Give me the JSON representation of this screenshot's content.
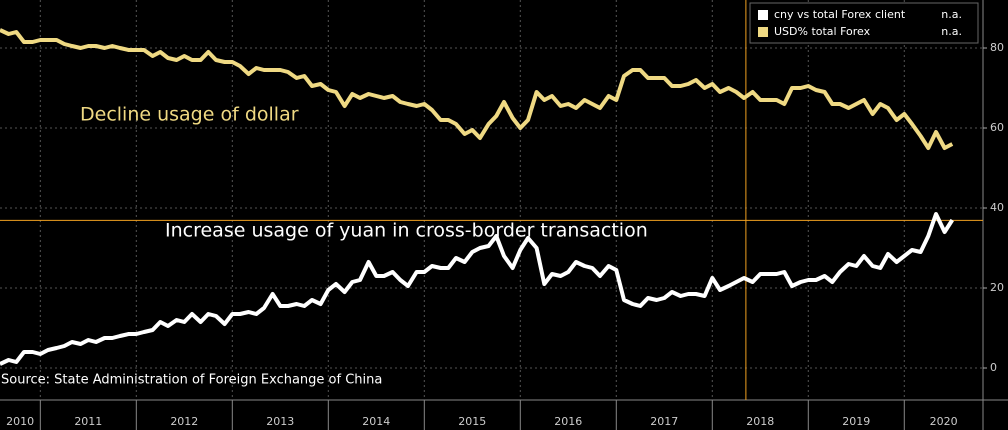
{
  "chart_data": {
    "type": "line",
    "annotations": [
      "Decline usage of dollar",
      "Increase usage of yuan in cross-border transaction"
    ],
    "source": "Source: State Administration of Foreign Exchange of China",
    "x": [
      2010.58,
      2010.67,
      2010.75,
      2010.83,
      2010.92,
      2011,
      2011.08,
      2011.17,
      2011.25,
      2011.33,
      2011.42,
      2011.5,
      2011.58,
      2011.67,
      2011.75,
      2011.83,
      2011.92,
      2012,
      2012.08,
      2012.17,
      2012.25,
      2012.33,
      2012.42,
      2012.5,
      2012.58,
      2012.67,
      2012.75,
      2012.83,
      2012.92,
      2013,
      2013.08,
      2013.17,
      2013.25,
      2013.33,
      2013.42,
      2013.5,
      2013.58,
      2013.67,
      2013.75,
      2013.83,
      2013.92,
      2014,
      2014.08,
      2014.17,
      2014.25,
      2014.33,
      2014.42,
      2014.5,
      2014.58,
      2014.67,
      2014.75,
      2014.83,
      2014.92,
      2015,
      2015.08,
      2015.17,
      2015.25,
      2015.33,
      2015.42,
      2015.5,
      2015.58,
      2015.67,
      2015.75,
      2015.83,
      2015.92,
      2016,
      2016.08,
      2016.17,
      2016.25,
      2016.33,
      2016.42,
      2016.5,
      2016.58,
      2016.67,
      2016.75,
      2016.83,
      2016.92,
      2017,
      2017.08,
      2017.17,
      2017.25,
      2017.33,
      2017.42,
      2017.5,
      2017.58,
      2017.67,
      2017.75,
      2017.83,
      2017.92,
      2018,
      2018.08,
      2018.17,
      2018.25,
      2018.33,
      2018.42,
      2018.5,
      2018.58,
      2018.67,
      2018.75,
      2018.83,
      2018.92,
      2019,
      2019.08,
      2019.17,
      2019.25,
      2019.33,
      2019.42,
      2019.5,
      2019.58,
      2019.67,
      2019.75,
      2019.83,
      2019.92,
      2020,
      2020.08,
      2020.17,
      2020.25,
      2020.33,
      2020.42,
      2020.5
    ],
    "series": [
      {
        "name": "cny vs total Forex client",
        "legend_value": "n.a.",
        "color": "#ffffff",
        "values": [
          1,
          2,
          1.5,
          4,
          4,
          3.5,
          4.5,
          5,
          5.5,
          6.5,
          6,
          7,
          6.5,
          7.5,
          7.5,
          8,
          8.5,
          8.5,
          9,
          9.5,
          11.5,
          10.5,
          12,
          11.5,
          13.5,
          11.5,
          13.5,
          13,
          11,
          13.5,
          13.5,
          14,
          13.5,
          15,
          18.5,
          15.5,
          15.5,
          16,
          15.5,
          17,
          16,
          19.5,
          21,
          19,
          21.5,
          22,
          26.5,
          23,
          23,
          24,
          22,
          20.5,
          24,
          24,
          25.5,
          25,
          25,
          27.5,
          26.5,
          29,
          30,
          30.5,
          33,
          28,
          25,
          29.5,
          32.5,
          30,
          21,
          23.5,
          23,
          24,
          26.5,
          25.5,
          25,
          23,
          25.5,
          24.5,
          17,
          16,
          15.5,
          17.5,
          17,
          17.5,
          19,
          18,
          18.5,
          18.5,
          18,
          22.5,
          19.5,
          20.5,
          21.5,
          22.5,
          21.5,
          23.5,
          23.5,
          23.5,
          24,
          20.5,
          21.5,
          22,
          22,
          23,
          21.5,
          24,
          26,
          25.5,
          28,
          25.5,
          25,
          28.5,
          26.5,
          28,
          29.5,
          29,
          33,
          38.5,
          34,
          37
        ]
      },
      {
        "name": "USD% total Forex",
        "legend_value": "n.a.",
        "color": "#efd983",
        "values": [
          84.5,
          83.5,
          84,
          81.5,
          81.5,
          82,
          82,
          82,
          81,
          80.5,
          80,
          80.5,
          80.5,
          80,
          80.5,
          80,
          79.5,
          79.5,
          79.5,
          78,
          79,
          77.5,
          77,
          78,
          77,
          77,
          79,
          77,
          76.5,
          76.5,
          75.5,
          73.5,
          75,
          74.5,
          74.5,
          74.5,
          74,
          72.5,
          73,
          70.5,
          71,
          69.5,
          69,
          65.5,
          68.5,
          67.5,
          68.5,
          68,
          67.5,
          68,
          66.5,
          66,
          65.5,
          66,
          64.5,
          62,
          62,
          61,
          58.5,
          59.5,
          57.5,
          61,
          63,
          66.5,
          62.5,
          60,
          62,
          69,
          67,
          68,
          65.5,
          66,
          65,
          67,
          66,
          65,
          68,
          67,
          73,
          74.5,
          74.5,
          72.5,
          72.5,
          72.5,
          70.5,
          70.5,
          71,
          72,
          70,
          71,
          69,
          70,
          69,
          67.5,
          69,
          67,
          67,
          67,
          66,
          70,
          70,
          70.5,
          69.5,
          69,
          66,
          66,
          65,
          66,
          67,
          63.5,
          66,
          65,
          62,
          63.5,
          61,
          58,
          55,
          59,
          55,
          56
        ]
      }
    ],
    "xlim": [
      2010.58,
      2020.82
    ],
    "xticks": [
      2010,
      2011,
      2012,
      2013,
      2014,
      2015,
      2016,
      2017,
      2018,
      2019,
      2020
    ],
    "ylim": [
      -8,
      92
    ],
    "yticks": [
      0,
      20,
      40,
      60,
      80
    ],
    "reference_lines": {
      "x": 2018.35,
      "y": 36.9,
      "color": "#f0a020"
    },
    "grid": true,
    "legend": "top-right"
  }
}
